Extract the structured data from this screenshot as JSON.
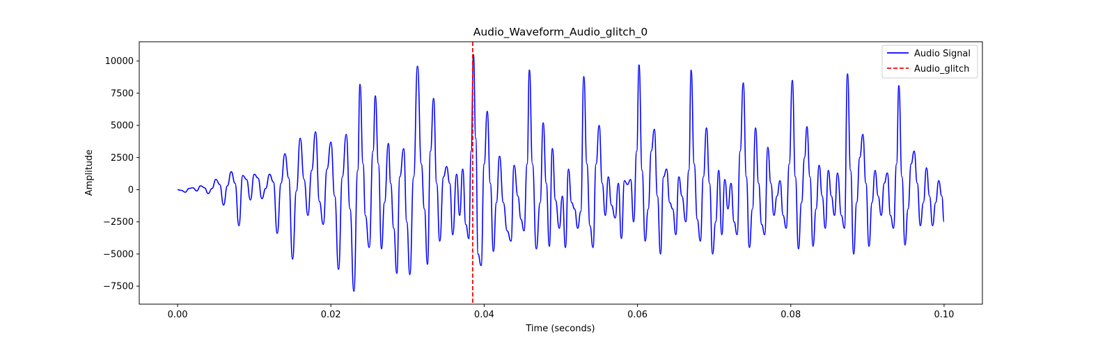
{
  "chart_data": {
    "type": "line",
    "title": "Audio_Waveform_Audio_glitch_0",
    "xlabel": "Time (seconds)",
    "ylabel": "Amplitude",
    "xlim": [
      -0.005,
      0.105
    ],
    "ylim": [
      -8900,
      11500
    ],
    "x_ticks": [
      0.0,
      0.02,
      0.04,
      0.06,
      0.08,
      0.1
    ],
    "x_tick_labels": [
      "0.00",
      "0.02",
      "0.04",
      "0.06",
      "0.08",
      "0.10"
    ],
    "y_ticks": [
      -7500,
      -5000,
      -2500,
      0,
      2500,
      5000,
      7500,
      10000
    ],
    "y_tick_labels": [
      "−7500",
      "−5000",
      "−2500",
      "0",
      "2500",
      "5000",
      "7500",
      "10000"
    ],
    "grid": false,
    "legend_position": "top-right",
    "series": [
      {
        "name": "Audio Signal",
        "color": "#0000ff",
        "style": "solid",
        "points": [
          [
            0.0,
            0
          ],
          [
            0.0005,
            -50
          ],
          [
            0.001,
            -200
          ],
          [
            0.0015,
            100
          ],
          [
            0.002,
            150
          ],
          [
            0.0025,
            -100
          ],
          [
            0.003,
            300
          ],
          [
            0.0035,
            150
          ],
          [
            0.004,
            -300
          ],
          [
            0.0045,
            100
          ],
          [
            0.005,
            800
          ],
          [
            0.0055,
            400
          ],
          [
            0.006,
            -1200
          ],
          [
            0.0065,
            300
          ],
          [
            0.007,
            1400
          ],
          [
            0.0075,
            500
          ],
          [
            0.008,
            -2800
          ],
          [
            0.0085,
            1100
          ],
          [
            0.009,
            800
          ],
          [
            0.0095,
            -800
          ],
          [
            0.01,
            1200
          ],
          [
            0.0105,
            900
          ],
          [
            0.011,
            -700
          ],
          [
            0.0115,
            100
          ],
          [
            0.012,
            1200
          ],
          [
            0.0125,
            600
          ],
          [
            0.013,
            -3400
          ],
          [
            0.0135,
            500
          ],
          [
            0.014,
            2800
          ],
          [
            0.0145,
            900
          ],
          [
            0.015,
            -5400
          ],
          [
            0.0155,
            -100
          ],
          [
            0.016,
            4000
          ],
          [
            0.0165,
            800
          ],
          [
            0.017,
            -2000
          ],
          [
            0.0175,
            1500
          ],
          [
            0.018,
            4500
          ],
          [
            0.0185,
            -900
          ],
          [
            0.019,
            -2700
          ],
          [
            0.0195,
            1600
          ],
          [
            0.02,
            3700
          ],
          [
            0.0205,
            -500
          ],
          [
            0.021,
            -6200
          ],
          [
            0.0215,
            1000
          ],
          [
            0.022,
            4300
          ],
          [
            0.0225,
            -1500
          ],
          [
            0.023,
            -7900
          ],
          [
            0.0235,
            1500
          ],
          [
            0.0238,
            8200
          ],
          [
            0.0242,
            2000
          ],
          [
            0.0245,
            -2000
          ],
          [
            0.025,
            -4500
          ],
          [
            0.0255,
            3000
          ],
          [
            0.0258,
            7300
          ],
          [
            0.0262,
            2000
          ],
          [
            0.0266,
            -4600
          ],
          [
            0.027,
            -1000
          ],
          [
            0.0275,
            3600
          ],
          [
            0.0278,
            500
          ],
          [
            0.0282,
            -3000
          ],
          [
            0.0286,
            -6500
          ],
          [
            0.029,
            1000
          ],
          [
            0.0295,
            3200
          ],
          [
            0.0299,
            -2500
          ],
          [
            0.0303,
            -6600
          ],
          [
            0.0308,
            1000
          ],
          [
            0.0313,
            9600
          ],
          [
            0.0318,
            2000
          ],
          [
            0.0322,
            -1500
          ],
          [
            0.0326,
            -5800
          ],
          [
            0.033,
            3000
          ],
          [
            0.0334,
            7100
          ],
          [
            0.0338,
            500
          ],
          [
            0.0342,
            -4000
          ],
          [
            0.0347,
            1000
          ],
          [
            0.0351,
            1800
          ],
          [
            0.0355,
            500
          ],
          [
            0.0359,
            -3500
          ],
          [
            0.0364,
            1200
          ],
          [
            0.0368,
            -2000
          ],
          [
            0.0372,
            1600
          ],
          [
            0.0376,
            -2700
          ],
          [
            0.038,
            -3800
          ],
          [
            0.0383,
            3000
          ],
          [
            0.0386,
            10500
          ],
          [
            0.0389,
            4000
          ],
          [
            0.0392,
            -5000
          ],
          [
            0.0396,
            -5900
          ],
          [
            0.04,
            2000
          ],
          [
            0.0404,
            6100
          ],
          [
            0.0408,
            500
          ],
          [
            0.0412,
            -4800
          ],
          [
            0.0416,
            -1000
          ],
          [
            0.042,
            2600
          ],
          [
            0.0425,
            -1000
          ],
          [
            0.043,
            -3200
          ],
          [
            0.0435,
            -4000
          ],
          [
            0.0439,
            1900
          ],
          [
            0.0444,
            -500
          ],
          [
            0.0448,
            -2300
          ],
          [
            0.0452,
            -3200
          ],
          [
            0.0456,
            2000
          ],
          [
            0.0459,
            9300
          ],
          [
            0.0463,
            2000
          ],
          [
            0.0468,
            -4600
          ],
          [
            0.0473,
            -1000
          ],
          [
            0.0477,
            5200
          ],
          [
            0.0481,
            500
          ],
          [
            0.0485,
            -4400
          ],
          [
            0.0489,
            3200
          ],
          [
            0.0493,
            -800
          ],
          [
            0.0498,
            -3000
          ],
          [
            0.0502,
            -500
          ],
          [
            0.0506,
            -4500
          ],
          [
            0.051,
            1600
          ],
          [
            0.0514,
            -1000
          ],
          [
            0.0518,
            -1500
          ],
          [
            0.0522,
            -3000
          ],
          [
            0.0526,
            -1700
          ],
          [
            0.053,
            8800
          ],
          [
            0.0534,
            2000
          ],
          [
            0.0538,
            -2800
          ],
          [
            0.0542,
            -4500
          ],
          [
            0.0546,
            2000
          ],
          [
            0.055,
            5000
          ],
          [
            0.0554,
            500
          ],
          [
            0.0558,
            -2000
          ],
          [
            0.0562,
            1000
          ],
          [
            0.0566,
            -1200
          ],
          [
            0.0571,
            -2200
          ],
          [
            0.0575,
            500
          ],
          [
            0.0579,
            -3800
          ],
          [
            0.0583,
            700
          ],
          [
            0.0587,
            400
          ],
          [
            0.0591,
            800
          ],
          [
            0.0595,
            -2500
          ],
          [
            0.0599,
            3000
          ],
          [
            0.0602,
            9700
          ],
          [
            0.0606,
            1500
          ],
          [
            0.061,
            -4000
          ],
          [
            0.0614,
            -1500
          ],
          [
            0.0618,
            3000
          ],
          [
            0.0622,
            4700
          ],
          [
            0.0626,
            -500
          ],
          [
            0.063,
            -5000
          ],
          [
            0.0634,
            1000
          ],
          [
            0.0638,
            1600
          ],
          [
            0.0642,
            -1000
          ],
          [
            0.0646,
            -1500
          ],
          [
            0.065,
            -3500
          ],
          [
            0.0654,
            1000
          ],
          [
            0.0658,
            -500
          ],
          [
            0.0663,
            -2500
          ],
          [
            0.0667,
            1500
          ],
          [
            0.067,
            9300
          ],
          [
            0.0674,
            2000
          ],
          [
            0.0678,
            -2300
          ],
          [
            0.0682,
            -4000
          ],
          [
            0.0686,
            1000
          ],
          [
            0.069,
            4800
          ],
          [
            0.0694,
            500
          ],
          [
            0.0698,
            -5000
          ],
          [
            0.0702,
            -2500
          ],
          [
            0.0706,
            1500
          ],
          [
            0.071,
            -3500
          ],
          [
            0.0714,
            800
          ],
          [
            0.0718,
            -1500
          ],
          [
            0.0722,
            500
          ],
          [
            0.0726,
            -2500
          ],
          [
            0.073,
            -3500
          ],
          [
            0.0734,
            3000
          ],
          [
            0.0738,
            8300
          ],
          [
            0.0742,
            1000
          ],
          [
            0.0746,
            -4500
          ],
          [
            0.075,
            -1500
          ],
          [
            0.0754,
            4800
          ],
          [
            0.0758,
            500
          ],
          [
            0.0762,
            -2700
          ],
          [
            0.0766,
            -3500
          ],
          [
            0.077,
            3300
          ],
          [
            0.0774,
            500
          ],
          [
            0.0778,
            -2000
          ],
          [
            0.0782,
            -500
          ],
          [
            0.0786,
            700
          ],
          [
            0.079,
            -2000
          ],
          [
            0.0794,
            -3000
          ],
          [
            0.0798,
            2000
          ],
          [
            0.0802,
            8500
          ],
          [
            0.0806,
            1000
          ],
          [
            0.081,
            -4600
          ],
          [
            0.0814,
            -1000
          ],
          [
            0.0818,
            2500
          ],
          [
            0.0821,
            4900
          ],
          [
            0.0825,
            1000
          ],
          [
            0.0829,
            -4400
          ],
          [
            0.0833,
            -1500
          ],
          [
            0.0837,
            1900
          ],
          [
            0.0841,
            -500
          ],
          [
            0.0845,
            -3000
          ],
          [
            0.0849,
            1500
          ],
          [
            0.0853,
            -500
          ],
          [
            0.0857,
            -2000
          ],
          [
            0.0861,
            1300
          ],
          [
            0.0866,
            -2000
          ],
          [
            0.087,
            -3000
          ],
          [
            0.0874,
            9000
          ],
          [
            0.0878,
            1500
          ],
          [
            0.0882,
            -5000
          ],
          [
            0.0886,
            -1000
          ],
          [
            0.089,
            2500
          ],
          [
            0.0894,
            4300
          ],
          [
            0.0898,
            500
          ],
          [
            0.0902,
            -4400
          ],
          [
            0.0906,
            -1000
          ],
          [
            0.091,
            1500
          ],
          [
            0.0914,
            -500
          ],
          [
            0.0918,
            -2000
          ],
          [
            0.0922,
            500
          ],
          [
            0.0926,
            1300
          ],
          [
            0.093,
            -2000
          ],
          [
            0.0934,
            -3000
          ],
          [
            0.0938,
            2000
          ],
          [
            0.0941,
            8100
          ],
          [
            0.0945,
            1000
          ],
          [
            0.0949,
            -4300
          ],
          [
            0.0953,
            -1500
          ],
          [
            0.0957,
            2000
          ],
          [
            0.0961,
            3000
          ],
          [
            0.0965,
            500
          ],
          [
            0.0969,
            -2800
          ],
          [
            0.0973,
            -1000
          ],
          [
            0.0977,
            1700
          ],
          [
            0.0981,
            -500
          ],
          [
            0.0985,
            -2800
          ],
          [
            0.0989,
            -1000
          ],
          [
            0.0993,
            700
          ],
          [
            0.0997,
            -500
          ],
          [
            0.1,
            -2500
          ]
        ]
      },
      {
        "name": "Audio_glitch",
        "color": "#ff0000",
        "style": "dashed",
        "vline_x": 0.0385
      }
    ]
  }
}
